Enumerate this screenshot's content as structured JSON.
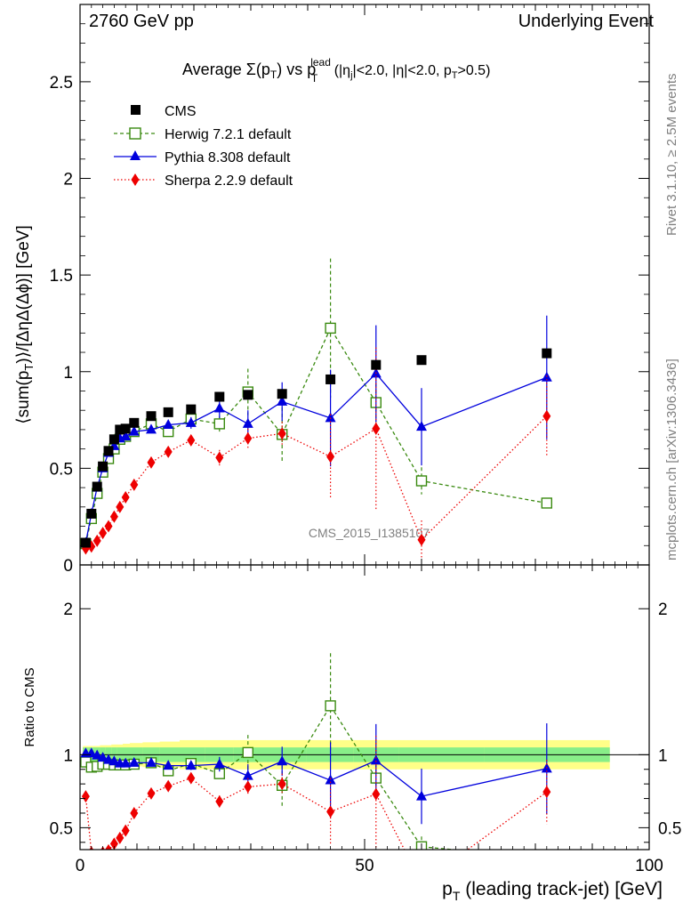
{
  "header": {
    "left": "2760 GeV pp",
    "right": "Underlying Event"
  },
  "title": {
    "main": "Average Σ(p",
    "sub_T1": "T",
    "mid": ") vs p",
    "sub_T2": "T",
    "sup_lead": "lead",
    "cuts1": " (|η",
    "sub_j": "j",
    "cuts2": "|<2.0, |η|<2.0, p",
    "sub_T3": "T",
    "cuts3": ">0.5)"
  },
  "side_labels": {
    "rivet": "Rivet 3.1.10, ≥ 2.5M events",
    "mcplots": "mcplots.cern.ch [arXiv:1306.3436]"
  },
  "watermark": "CMS_2015_I1385107",
  "axes": {
    "ylabel_main_parts": [
      "⟨sum(p",
      "T",
      ")⟩/[ΔηΔ(Δϕ)] [GeV]"
    ],
    "ylabel_ratio": "Ratio to CMS",
    "xlabel_parts": [
      "p",
      "T",
      " (leading track-jet) [GeV]"
    ]
  },
  "legend": [
    {
      "label": "CMS",
      "color": "#000000",
      "marker": "square-filled"
    },
    {
      "label": "Herwig 7.2.1 default",
      "color": "#3a8a10",
      "marker": "square-open"
    },
    {
      "label": "Pythia 8.308 default",
      "color": "#0000dd",
      "marker": "triangle"
    },
    {
      "label": "Sherpa 2.2.9 default",
      "color": "#ee0000",
      "marker": "diamond"
    }
  ],
  "chart_data": {
    "type": "scatter",
    "x_range": [
      0,
      100
    ],
    "x_ticks": [
      "0",
      "50",
      "100"
    ],
    "main_ylim": [
      0,
      2.9
    ],
    "main_yticks": [
      "0",
      "0.5",
      "1",
      "1.5",
      "2",
      "2.5"
    ],
    "ratio_ylim": [
      0.35,
      2.3
    ],
    "ratio_yticks": [
      "0.5",
      "1",
      "2"
    ],
    "x": [
      1.0,
      2.0,
      3.0,
      4.0,
      5.0,
      6.0,
      7.0,
      8.0,
      9.5,
      12.5,
      15.5,
      19.5,
      24.5,
      29.5,
      35.5,
      44.0,
      52.0,
      60.0,
      82.0
    ],
    "cms": [
      0.115,
      0.265,
      0.405,
      0.51,
      0.59,
      0.65,
      0.7,
      0.705,
      0.735,
      0.77,
      0.79,
      0.805,
      0.87,
      0.88,
      0.885,
      0.96,
      1.035,
      1.06,
      1.095
    ],
    "cms_band_inner": [
      0.05,
      0.05,
      0.05,
      0.05,
      0.05,
      0.05,
      0.05,
      0.05,
      0.05,
      0.05,
      0.05,
      0.05,
      0.05,
      0.05,
      0.05,
      0.05,
      0.05,
      0.05,
      0.05
    ],
    "cms_band_outer": [
      0.06,
      0.06,
      0.06,
      0.065,
      0.065,
      0.07,
      0.07,
      0.075,
      0.08,
      0.085,
      0.09,
      0.1,
      0.1,
      0.1,
      0.1,
      0.1,
      0.1,
      0.1,
      0.1
    ],
    "series": [
      {
        "name": "Herwig 7.2.1 default",
        "values": [
          0.11,
          0.24,
          0.37,
          0.48,
          0.55,
          0.6,
          0.65,
          0.665,
          0.69,
          0.73,
          0.69,
          0.755,
          0.73,
          0.895,
          0.675,
          1.225,
          0.84,
          0.435,
          0.32
        ],
        "errors": [
          0.005,
          0.005,
          0.01,
          0.01,
          0.01,
          0.01,
          0.01,
          0.01,
          0.01,
          0.015,
          0.015,
          0.02,
          0.04,
          0.12,
          0.14,
          0.36,
          0.1,
          0.07,
          0.02
        ],
        "ratio": [
          0.95,
          0.915,
          0.92,
          0.935,
          0.935,
          0.93,
          0.93,
          0.93,
          0.935,
          0.945,
          0.89,
          0.94,
          0.87,
          1.015,
          0.79,
          1.335,
          0.84,
          0.37,
          0.29
        ]
      },
      {
        "name": "Pythia 8.308 default",
        "values": [
          0.115,
          0.265,
          0.4,
          0.5,
          0.58,
          0.615,
          0.655,
          0.665,
          0.69,
          0.7,
          0.725,
          0.735,
          0.81,
          0.73,
          0.845,
          0.76,
          0.99,
          0.715,
          0.97
        ],
        "errors": [
          0.005,
          0.005,
          0.01,
          0.01,
          0.01,
          0.01,
          0.01,
          0.01,
          0.015,
          0.015,
          0.02,
          0.03,
          0.05,
          0.07,
          0.1,
          0.25,
          0.25,
          0.2,
          0.32
        ],
        "ratio": [
          1.01,
          1.01,
          0.995,
          0.98,
          0.965,
          0.955,
          0.94,
          0.94,
          0.945,
          0.945,
          0.925,
          0.925,
          0.935,
          0.855,
          0.955,
          0.825,
          0.96,
          0.715,
          0.905
        ],
        "ratio_errors": [
          0.005,
          0.005,
          0.01,
          0.01,
          0.01,
          0.01,
          0.01,
          0.01,
          0.015,
          0.02,
          0.02,
          0.03,
          0.05,
          0.08,
          0.1,
          0.26,
          0.25,
          0.19,
          0.31
        ]
      },
      {
        "name": "Sherpa 2.2.9 default",
        "values": [
          0.085,
          0.095,
          0.125,
          0.165,
          0.2,
          0.25,
          0.3,
          0.35,
          0.415,
          0.53,
          0.585,
          0.645,
          0.555,
          0.655,
          0.68,
          0.56,
          0.705,
          0.13,
          0.77
        ],
        "errors": [
          0.005,
          0.005,
          0.005,
          0.005,
          0.01,
          0.01,
          0.01,
          0.01,
          0.015,
          0.015,
          0.02,
          0.02,
          0.04,
          0.05,
          0.06,
          0.22,
          0.42,
          0.1,
          0.21
        ],
        "ratio": [
          0.715,
          0.33,
          0.31,
          0.33,
          0.345,
          0.39,
          0.43,
          0.48,
          0.6,
          0.735,
          0.785,
          0.84,
          0.68,
          0.78,
          0.8,
          0.61,
          0.73,
          0.12,
          0.745
        ],
        "ratio_errors": [
          0.01,
          0.01,
          0.01,
          0.01,
          0.01,
          0.01,
          0.015,
          0.015,
          0.02,
          0.02,
          0.02,
          0.025,
          0.04,
          0.06,
          0.07,
          0.23,
          0.4,
          0.1,
          0.22
        ]
      }
    ]
  }
}
